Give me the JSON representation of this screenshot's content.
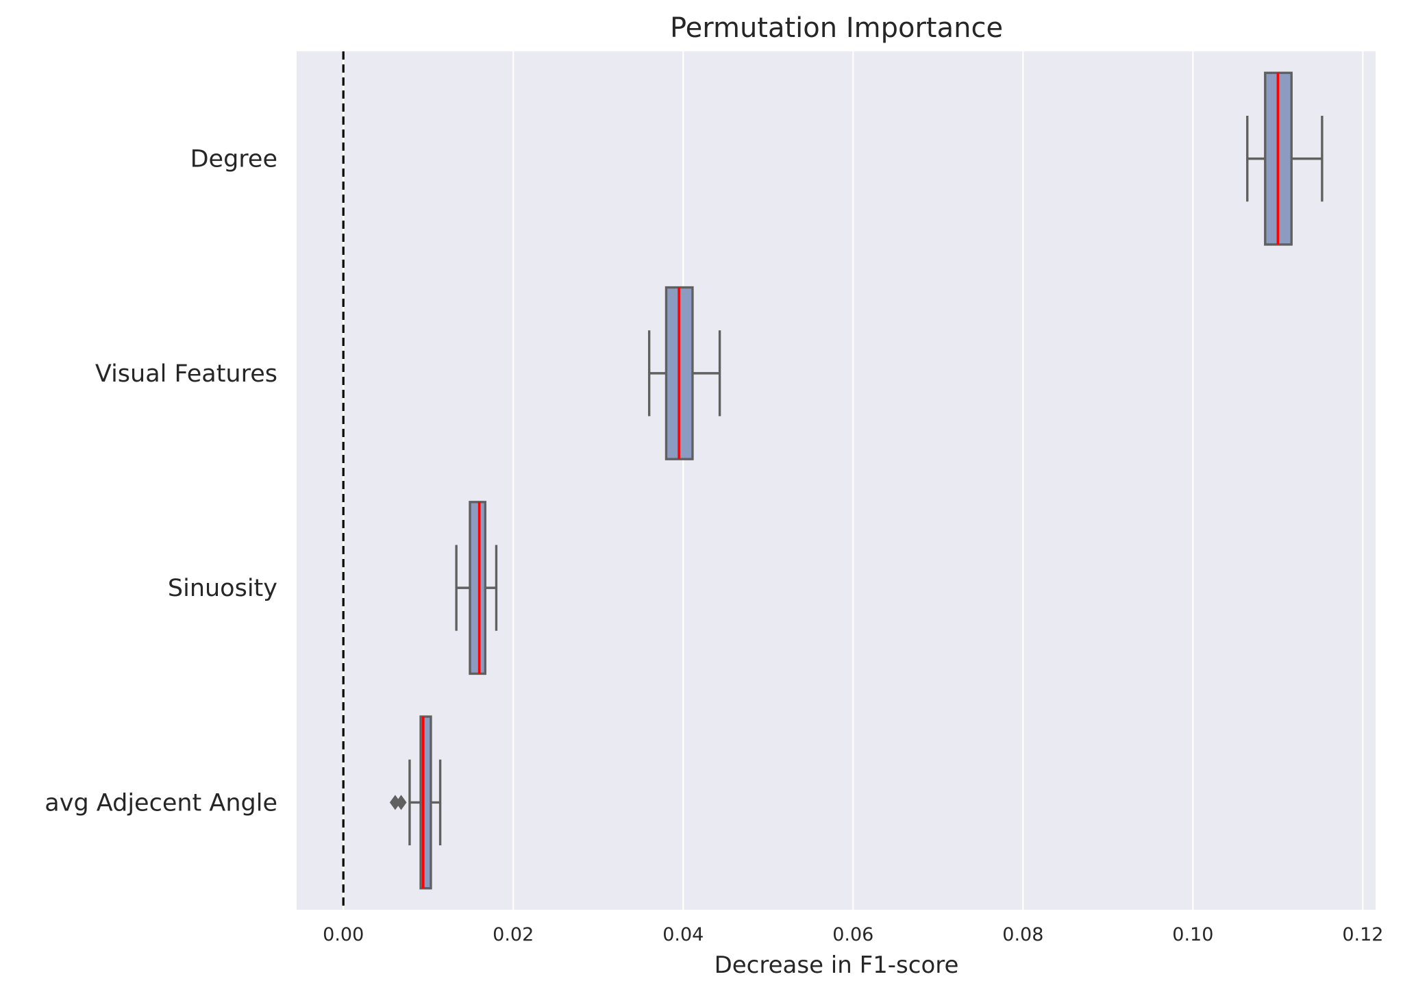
{
  "chart_data": {
    "type": "boxplot",
    "orientation": "horizontal",
    "title": "Permutation Importance",
    "xlabel": "Decrease in F1-score",
    "ylabel": "",
    "xlim": [
      -0.0055,
      0.1215
    ],
    "xticks": [
      0.0,
      0.02,
      0.04,
      0.06,
      0.08,
      0.1,
      0.12
    ],
    "xtick_labels": [
      "0.00",
      "0.02",
      "0.04",
      "0.06",
      "0.08",
      "0.10",
      "0.12"
    ],
    "grid": true,
    "reference_line": {
      "x": 0,
      "style": "dashed"
    },
    "colors": {
      "background": "#eaeaf2",
      "grid": "#ffffff",
      "box_fill": "#8c9cc0",
      "box_edge": "#606060",
      "median": "#ff0000",
      "reference": "#000000"
    },
    "categories": [
      "Degree",
      "Visual Features",
      "Sinuosity",
      "avg Adjecent Angle"
    ],
    "series": [
      {
        "name": "Degree",
        "whisker_low": 0.1064,
        "q1": 0.1085,
        "median": 0.11,
        "q3": 0.1116,
        "whisker_high": 0.1152,
        "outliers": []
      },
      {
        "name": "Visual Features",
        "whisker_low": 0.036,
        "q1": 0.038,
        "median": 0.0395,
        "q3": 0.0411,
        "whisker_high": 0.0443,
        "outliers": []
      },
      {
        "name": "Sinuosity",
        "whisker_low": 0.0133,
        "q1": 0.0149,
        "median": 0.016,
        "q3": 0.0167,
        "whisker_high": 0.018,
        "outliers": []
      },
      {
        "name": "avg Adjecent Angle",
        "whisker_low": 0.0078,
        "q1": 0.0091,
        "median": 0.0094,
        "q3": 0.0103,
        "whisker_high": 0.0114,
        "outliers": [
          0.0061,
          0.0068
        ]
      }
    ]
  }
}
